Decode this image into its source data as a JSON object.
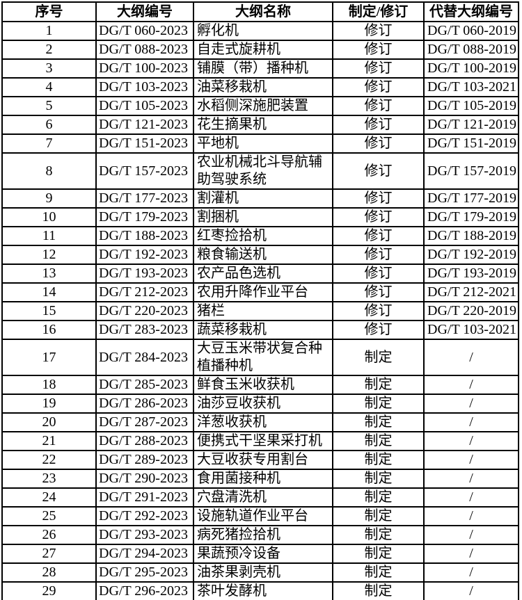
{
  "colors": {
    "background": "#ffffff",
    "border": "#000000",
    "text": "#000000"
  },
  "table": {
    "headers": [
      "序号",
      "大纲编号",
      "大纲名称",
      "制定/修订",
      "代替大纲编号"
    ],
    "header_keys": [
      "serial-number",
      "outline-code",
      "outline-name",
      "establish-or-revise",
      "replaced-outline-code"
    ],
    "rows": [
      {
        "no": "1",
        "code": "DG/T 060-2023",
        "name": "孵化机",
        "type": "修订",
        "replaced": "DG/T 060-2019"
      },
      {
        "no": "2",
        "code": "DG/T 088-2023",
        "name": "自走式旋耕机",
        "type": "修订",
        "replaced": "DG/T 088-2019"
      },
      {
        "no": "3",
        "code": "DG/T 100-2023",
        "name": "铺膜（带）播种机",
        "type": "修订",
        "replaced": "DG/T 100-2019"
      },
      {
        "no": "4",
        "code": "DG/T 103-2023",
        "name": "油菜移栽机",
        "type": "修订",
        "replaced": "DG/T 103-2021"
      },
      {
        "no": "5",
        "code": "DG/T 105-2023",
        "name": "水稻侧深施肥装置",
        "type": "修订",
        "replaced": "DG/T 105-2019"
      },
      {
        "no": "6",
        "code": "DG/T 121-2023",
        "name": "花生摘果机",
        "type": "修订",
        "replaced": "DG/T 121-2019"
      },
      {
        "no": "7",
        "code": "DG/T 151-2023",
        "name": "平地机",
        "type": "修订",
        "replaced": "DG/T 151-2019"
      },
      {
        "no": "8",
        "code": "DG/T 157-2023",
        "name": "农业机械北斗导航辅助驾驶系统",
        "type": "修订",
        "replaced": "DG/T 157-2019"
      },
      {
        "no": "9",
        "code": "DG/T 177-2023",
        "name": "割灌机",
        "type": "修订",
        "replaced": "DG/T 177-2019"
      },
      {
        "no": "10",
        "code": "DG/T 179-2023",
        "name": "割捆机",
        "type": "修订",
        "replaced": "DG/T 179-2019"
      },
      {
        "no": "11",
        "code": "DG/T 188-2023",
        "name": "红枣捡拾机",
        "type": "修订",
        "replaced": "DG/T 188-2019"
      },
      {
        "no": "12",
        "code": "DG/T 192-2023",
        "name": "粮食输送机",
        "type": "修订",
        "replaced": "DG/T 192-2019"
      },
      {
        "no": "13",
        "code": "DG/T 193-2023",
        "name": "农产品色选机",
        "type": "修订",
        "replaced": "DG/T 193-2019"
      },
      {
        "no": "14",
        "code": "DG/T 212-2023",
        "name": "农用升降作业平台",
        "type": "修订",
        "replaced": "DG/T 212-2021"
      },
      {
        "no": "15",
        "code": "DG/T 220-2023",
        "name": "猪栏",
        "type": "修订",
        "replaced": "DG/T 220-2019"
      },
      {
        "no": "16",
        "code": "DG/T 283-2023",
        "name": "蔬菜移栽机",
        "type": "修订",
        "replaced": "DG/T 103-2021"
      },
      {
        "no": "17",
        "code": "DG/T 284-2023",
        "name": "大豆玉米带状复合种植播种机",
        "type": "制定",
        "replaced": "/"
      },
      {
        "no": "18",
        "code": "DG/T 285-2023",
        "name": "鲜食玉米收获机",
        "type": "制定",
        "replaced": "/"
      },
      {
        "no": "19",
        "code": "DG/T 286-2023",
        "name": "油莎豆收获机",
        "type": "制定",
        "replaced": "/"
      },
      {
        "no": "20",
        "code": "DG/T 287-2023",
        "name": "洋葱收获机",
        "type": "制定",
        "replaced": "/"
      },
      {
        "no": "21",
        "code": "DG/T 288-2023",
        "name": "便携式干坚果采打机",
        "type": "制定",
        "replaced": "/"
      },
      {
        "no": "22",
        "code": "DG/T 289-2023",
        "name": "大豆收获专用割台",
        "type": "制定",
        "replaced": "/"
      },
      {
        "no": "23",
        "code": "DG/T 290-2023",
        "name": "食用菌接种机",
        "type": "制定",
        "replaced": "/"
      },
      {
        "no": "24",
        "code": "DG/T 291-2023",
        "name": "穴盘清洗机",
        "type": "制定",
        "replaced": "/"
      },
      {
        "no": "25",
        "code": "DG/T 292-2023",
        "name": "设施轨道作业平台",
        "type": "制定",
        "replaced": "/"
      },
      {
        "no": "26",
        "code": "DG/T 293-2023",
        "name": "病死猪捡拾机",
        "type": "制定",
        "replaced": "/"
      },
      {
        "no": "27",
        "code": "DG/T 294-2023",
        "name": "果蔬预冷设备",
        "type": "制定",
        "replaced": "/"
      },
      {
        "no": "28",
        "code": "DG/T 295-2023",
        "name": "油茶果剥壳机",
        "type": "制定",
        "replaced": "/"
      },
      {
        "no": "29",
        "code": "DG/T 296-2023",
        "name": "茶叶发酵机",
        "type": "制定",
        "replaced": "/"
      }
    ]
  }
}
